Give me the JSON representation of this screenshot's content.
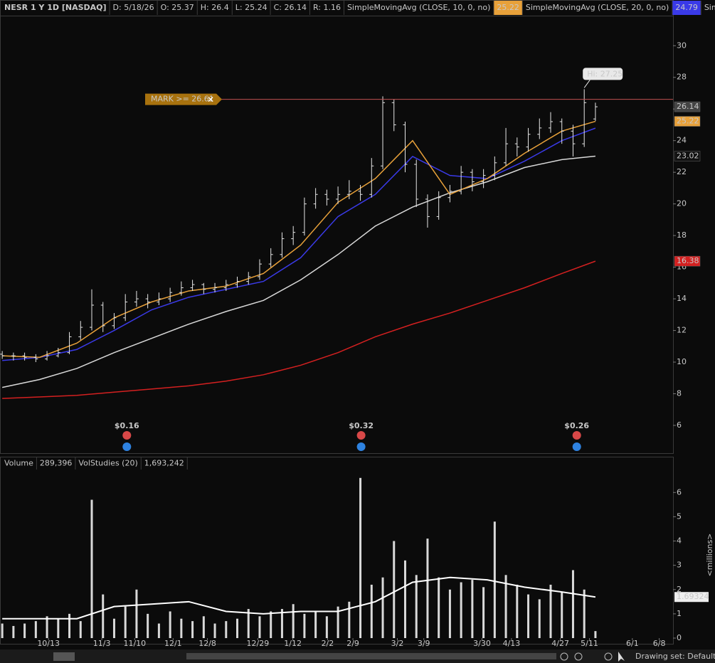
{
  "chart_data": [
    {
      "type": "ohlc",
      "title": "NESR 1 Y 1D [NASDAQ]",
      "header": [
        "D: 5/18/26",
        "O: 25.37",
        "H: 26.4",
        "L: 25.24",
        "C: 26.14",
        "R: 1.16"
      ],
      "color": "#e6e6e6",
      "x": [
        0,
        3,
        6,
        9,
        12,
        15,
        18,
        21,
        24,
        27,
        30,
        33,
        36,
        39,
        42,
        45,
        48,
        51,
        54,
        57,
        60,
        63,
        66,
        69,
        72,
        75,
        78,
        81,
        84,
        87,
        90,
        93,
        96,
        99,
        102,
        105,
        108,
        111,
        114,
        117,
        120,
        123,
        126,
        129,
        132,
        135,
        138,
        141,
        144,
        147,
        150,
        153,
        156,
        159
      ],
      "open": [
        10.5,
        10.4,
        10.4,
        10.3,
        10.2,
        10.4,
        10.6,
        11.6,
        12.2,
        13.6,
        12.3,
        12.8,
        13.8,
        14.0,
        13.8,
        14.0,
        14.4,
        14.7,
        14.9,
        14.6,
        14.7,
        14.9,
        15.1,
        15.4,
        16.2,
        16.8,
        17.8,
        18.2,
        20.0,
        20.6,
        20.3,
        20.6,
        20.8,
        20.6,
        22.4,
        26.4,
        25.0,
        22.5,
        20.3,
        19.2,
        20.4,
        20.8,
        22.0,
        21.4,
        21.8,
        22.6,
        23.8,
        23.6,
        24.4,
        24.8,
        25.2,
        24.6,
        23.8,
        25.37
      ],
      "high": [
        10.7,
        10.6,
        10.6,
        10.5,
        10.7,
        10.9,
        11.9,
        12.6,
        14.6,
        13.8,
        13.1,
        14.3,
        14.5,
        14.3,
        14.4,
        14.7,
        15.1,
        15.2,
        15.0,
        15.0,
        15.2,
        15.4,
        15.7,
        16.5,
        17.2,
        18.2,
        18.6,
        20.4,
        21.0,
        20.9,
        21.1,
        21.5,
        21.2,
        22.9,
        26.8,
        26.6,
        25.2,
        22.8,
        20.6,
        20.8,
        21.2,
        22.4,
        22.2,
        22.2,
        23.0,
        24.8,
        24.2,
        24.8,
        25.4,
        25.8,
        25.4,
        25.0,
        27.25,
        26.4
      ],
      "low": [
        10.2,
        10.1,
        10.1,
        10.0,
        10.1,
        10.3,
        10.5,
        11.4,
        12.0,
        11.9,
        12.1,
        12.6,
        13.5,
        13.4,
        13.6,
        13.8,
        14.2,
        14.5,
        14.3,
        14.4,
        14.5,
        14.7,
        14.9,
        15.2,
        16.0,
        16.6,
        17.4,
        18.0,
        19.7,
        19.9,
        20.0,
        20.3,
        20.2,
        20.4,
        22.2,
        24.6,
        22.0,
        19.8,
        18.5,
        19.0,
        20.1,
        20.6,
        20.8,
        21.0,
        21.5,
        22.4,
        23.0,
        23.3,
        24.1,
        24.5,
        23.8,
        23.0,
        23.6,
        25.24
      ],
      "close": [
        10.4,
        10.4,
        10.3,
        10.2,
        10.4,
        10.6,
        11.6,
        12.2,
        13.6,
        12.3,
        12.8,
        13.8,
        14.0,
        13.8,
        14.0,
        14.4,
        14.7,
        14.9,
        14.6,
        14.7,
        14.9,
        15.1,
        15.4,
        16.2,
        16.8,
        17.8,
        18.2,
        20.0,
        20.6,
        20.3,
        20.6,
        20.8,
        20.6,
        22.4,
        26.4,
        25.0,
        22.5,
        20.3,
        19.2,
        20.4,
        20.8,
        22.0,
        21.4,
        21.8,
        22.6,
        23.8,
        23.6,
        24.4,
        24.8,
        25.2,
        24.6,
        23.8,
        26.4,
        26.14
      ],
      "xlim": [
        -0.6,
        179.8
      ],
      "ylim": [
        4.2,
        31.9
      ],
      "yticks": [
        6,
        8,
        10,
        12,
        14,
        16,
        18,
        20,
        22,
        24,
        26,
        28,
        30
      ],
      "lines": [
        {
          "name": "SimpleMovingAvg (CLOSE, 10, 0, no)",
          "color": "#e8a13a",
          "x": [
            0,
            10,
            20,
            30,
            40,
            50,
            60,
            70,
            80,
            90,
            100,
            110,
            120,
            130,
            140,
            150,
            159
          ],
          "values": [
            10.4,
            10.3,
            11.2,
            12.8,
            13.8,
            14.5,
            14.8,
            15.6,
            17.4,
            20.1,
            21.6,
            24.0,
            20.6,
            21.6,
            23.2,
            24.6,
            25.22
          ]
        },
        {
          "name": "SimpleMovingAvg (CLOSE, 20, 0, no)",
          "color": "#3a3ae8",
          "x": [
            0,
            10,
            20,
            30,
            40,
            50,
            60,
            70,
            80,
            90,
            100,
            110,
            120,
            130,
            140,
            150,
            159
          ],
          "values": [
            10.1,
            10.3,
            10.8,
            12.0,
            13.3,
            14.1,
            14.6,
            15.1,
            16.6,
            19.2,
            20.6,
            23.0,
            21.8,
            21.6,
            22.7,
            24.0,
            24.79
          ]
        },
        {
          "name": "Simple...",
          "color": "#d8d8d8",
          "x": [
            0,
            10,
            20,
            30,
            40,
            50,
            60,
            70,
            80,
            90,
            100,
            110,
            120,
            130,
            140,
            150,
            159
          ],
          "values": [
            8.4,
            8.9,
            9.6,
            10.6,
            11.5,
            12.4,
            13.2,
            13.9,
            15.2,
            16.8,
            18.6,
            19.8,
            20.7,
            21.4,
            22.3,
            22.8,
            23.02
          ]
        },
        {
          "color": "#d42020",
          "x": [
            0,
            10,
            20,
            30,
            40,
            50,
            60,
            70,
            80,
            90,
            100,
            110,
            120,
            130,
            140,
            150,
            159
          ],
          "values": [
            7.7,
            7.8,
            7.9,
            8.1,
            8.3,
            8.5,
            8.8,
            9.2,
            9.8,
            10.6,
            11.6,
            12.4,
            13.1,
            13.9,
            14.7,
            15.6,
            16.38
          ]
        }
      ],
      "mark": {
        "label": "MARK >= 26.61",
        "value": 26.61
      },
      "high_note": {
        "label": "Hi: 27.25",
        "value": 27.25,
        "x": 156
      },
      "events": [
        {
          "x": 33.4,
          "label": "$0.16"
        },
        {
          "x": 96.2,
          "label": "$0.32"
        },
        {
          "x": 154,
          "label": "$0.26"
        }
      ]
    },
    {
      "type": "bar",
      "title": "Volume",
      "title_value": "289,396",
      "color": "#d9d9d9",
      "y_label": "<millions>",
      "x": [
        0,
        3,
        6,
        9,
        12,
        15,
        18,
        21,
        24,
        27,
        30,
        33,
        36,
        39,
        42,
        45,
        48,
        51,
        54,
        57,
        60,
        63,
        66,
        69,
        72,
        75,
        78,
        81,
        84,
        87,
        90,
        93,
        96,
        99,
        102,
        105,
        108,
        111,
        114,
        117,
        120,
        123,
        126,
        129,
        132,
        135,
        138,
        141,
        144,
        147,
        150,
        153,
        156,
        159
      ],
      "values": [
        0.6,
        0.5,
        0.6,
        0.7,
        0.9,
        0.8,
        1.0,
        0.7,
        5.7,
        1.8,
        0.8,
        1.3,
        2.0,
        1.0,
        0.6,
        1.1,
        0.8,
        0.7,
        0.9,
        0.6,
        0.7,
        0.8,
        1.2,
        0.9,
        1.1,
        1.2,
        1.4,
        1.0,
        1.1,
        0.9,
        1.3,
        1.5,
        6.6,
        2.2,
        2.5,
        4.0,
        3.2,
        2.6,
        4.1,
        2.5,
        2.0,
        2.3,
        2.4,
        2.1,
        4.8,
        2.6,
        2.2,
        1.8,
        1.6,
        2.2,
        1.9,
        2.8,
        2.0,
        0.289396
      ],
      "xlim": [
        -0.6,
        179.8
      ],
      "ylim": [
        0,
        6.8
      ],
      "yticks": [
        0,
        1,
        2,
        3,
        4,
        5,
        6
      ],
      "xticks": [
        {
          "value": 12.4,
          "label": "10/13"
        },
        {
          "value": 26.7,
          "label": "11/3"
        },
        {
          "value": 35.5,
          "label": "11/10"
        },
        {
          "value": 45.8,
          "label": "12/1"
        },
        {
          "value": 55,
          "label": "12/8"
        },
        {
          "value": 68.5,
          "label": "12/29"
        },
        {
          "value": 77.9,
          "label": "1/12"
        },
        {
          "value": 87.2,
          "label": "2/2"
        },
        {
          "value": 94,
          "label": "2/9"
        },
        {
          "value": 105.9,
          "label": "3/2"
        },
        {
          "value": 113,
          "label": "3/9"
        },
        {
          "value": 128.6,
          "label": "3/30"
        },
        {
          "value": 136.5,
          "label": "4/13"
        },
        {
          "value": 149.6,
          "label": "4/27"
        },
        {
          "value": 157.4,
          "label": "5/11"
        },
        {
          "value": 168.9,
          "label": "6/1"
        },
        {
          "value": 176.1,
          "label": "6/8"
        }
      ],
      "lines": [
        {
          "name": "VolStudies (20)",
          "value_label": "1,693,242",
          "color": "#ffffff",
          "x": [
            0,
            10,
            20,
            30,
            40,
            50,
            60,
            70,
            80,
            90,
            100,
            110,
            120,
            130,
            140,
            150,
            159
          ],
          "values": [
            0.8,
            0.8,
            0.8,
            1.3,
            1.4,
            1.5,
            1.1,
            1.0,
            1.1,
            1.1,
            1.5,
            2.3,
            2.5,
            2.4,
            2.1,
            1.9,
            1.69324
          ]
        }
      ]
    }
  ],
  "footer": "Drawing set: Default"
}
